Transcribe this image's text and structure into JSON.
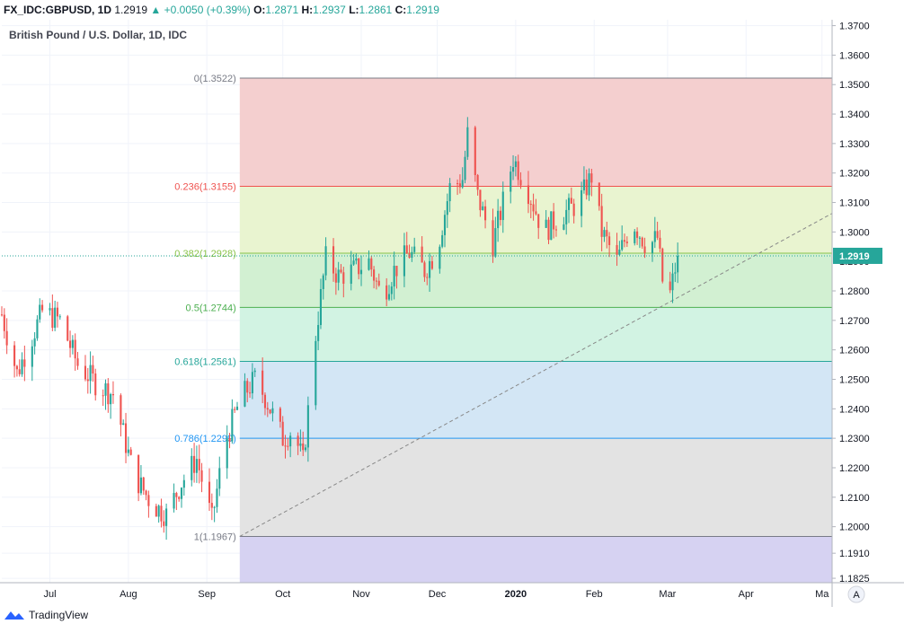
{
  "header": {
    "symbol": "FX_IDC:GBPUSD, 1D",
    "last": "1.2919",
    "change": "+0.0050 (+0.39%)",
    "open_label": "O:",
    "open": "1.2871",
    "high_label": "H:",
    "high": "1.2937",
    "low_label": "L:",
    "low": "1.2861",
    "close_label": "C:",
    "close": "1.2919"
  },
  "footer": {
    "brand": "TradingView"
  },
  "colors": {
    "up": "#26a69a",
    "down": "#ef5350",
    "grid": "#f0f3fa",
    "axis_text": "#131722"
  },
  "chart_data": {
    "type": "candlestick",
    "title": "British Pound / U.S. Dollar, 1D, IDC",
    "y_axis": {
      "ylim": [
        1.181,
        1.372
      ],
      "ticks": [
        1.37,
        1.36,
        1.35,
        1.34,
        1.33,
        1.32,
        1.31,
        1.3,
        1.28,
        1.27,
        1.26,
        1.25,
        1.24,
        1.23,
        1.22,
        1.21,
        1.2,
        1.191,
        1.1825
      ],
      "tick_labels": [
        "1.3700",
        "1.3600",
        "1.3500",
        "1.3400",
        "1.3300",
        "1.3200",
        "1.3100",
        "1.3000",
        "1.2800",
        "1.2700",
        "1.2600",
        "1.2500",
        "1.2400",
        "1.2300",
        "1.2200",
        "1.2100",
        "1.2000",
        "1.1910",
        "1.1825"
      ],
      "last_price": 1.2919,
      "last_price_label": "1.2919",
      "last_price_label_partial": "1.29",
      "partial_tick_under_label": "1.2900"
    },
    "x_axis": {
      "start": "2019-06-12",
      "end": "2020-05-05",
      "tick_labels": [
        {
          "label": "Jul",
          "date": "2019-07-01"
        },
        {
          "label": "Aug",
          "date": "2019-08-01"
        },
        {
          "label": "Sep",
          "date": "2019-09-01"
        },
        {
          "label": "Oct",
          "date": "2019-10-01"
        },
        {
          "label": "Nov",
          "date": "2019-11-01"
        },
        {
          "label": "Dec",
          "date": "2019-12-01"
        },
        {
          "label": "2020",
          "date": "2020-01-01"
        },
        {
          "label": "Feb",
          "date": "2020-02-01"
        },
        {
          "label": "Mar",
          "date": "2020-03-01"
        },
        {
          "label": "Apr",
          "date": "2020-04-01"
        },
        {
          "label": "Ma",
          "date": "2020-05-01"
        }
      ],
      "scale_button": "A"
    },
    "fib_retracement": {
      "start_date": "2019-09-14",
      "end_date": "2020-05-05",
      "levels": [
        {
          "ratio": 0,
          "price": 1.3522,
          "label": "0(1.3522)",
          "line": "#787b86",
          "fill": "#f4cfcf"
        },
        {
          "ratio": 0.236,
          "price": 1.3155,
          "label": "0.236(1.3155)",
          "line": "#ef5350",
          "fill": "#e9f4d0"
        },
        {
          "ratio": 0.382,
          "price": 1.2928,
          "label": "0.382(1.2928)",
          "line": "#8bc34a",
          "fill": "#d2f0d2"
        },
        {
          "ratio": 0.5,
          "price": 1.2744,
          "label": "0.5(1.2744)",
          "line": "#4caf50",
          "fill": "#d2f3e3"
        },
        {
          "ratio": 0.618,
          "price": 1.2561,
          "label": "0.618(1.2561)",
          "line": "#26a69a",
          "fill": "#d3e6f5"
        },
        {
          "ratio": 0.786,
          "price": 1.23,
          "label": "0.786(1.2299)",
          "line": "#2196f3",
          "fill": "#e3e3e3"
        },
        {
          "ratio": 1,
          "price": 1.1967,
          "label": "1(1.1967)",
          "line": "#787b86",
          "fill": "#d6d2f2"
        }
      ],
      "bottom_price": 1.181
    },
    "trend_line": {
      "start": {
        "date": "2019-09-14",
        "price": 1.1967
      },
      "end": {
        "date": "2020-05-05",
        "price": 1.3063
      }
    },
    "waypoints": [
      {
        "date": "2019-06-12",
        "price": 1.272
      },
      {
        "date": "2019-06-18",
        "price": 1.252
      },
      {
        "date": "2019-06-28",
        "price": 1.273
      },
      {
        "date": "2019-07-05",
        "price": 1.27
      },
      {
        "date": "2019-07-12",
        "price": 1.255
      },
      {
        "date": "2019-07-20",
        "price": 1.248
      },
      {
        "date": "2019-07-26",
        "price": 1.245
      },
      {
        "date": "2019-08-03",
        "price": 1.218
      },
      {
        "date": "2019-08-10",
        "price": 1.208
      },
      {
        "date": "2019-08-16",
        "price": 1.204
      },
      {
        "date": "2019-08-22",
        "price": 1.215
      },
      {
        "date": "2019-08-28",
        "price": 1.223
      },
      {
        "date": "2019-09-03",
        "price": 1.202
      },
      {
        "date": "2019-09-08",
        "price": 1.228
      },
      {
        "date": "2019-09-14",
        "price": 1.243
      },
      {
        "date": "2019-09-20",
        "price": 1.25
      },
      {
        "date": "2019-09-24",
        "price": 1.244
      },
      {
        "date": "2019-10-01",
        "price": 1.23
      },
      {
        "date": "2019-10-05",
        "price": 1.233
      },
      {
        "date": "2019-10-09",
        "price": 1.222
      },
      {
        "date": "2019-10-14",
        "price": 1.265
      },
      {
        "date": "2019-10-18",
        "price": 1.291
      },
      {
        "date": "2019-10-23",
        "price": 1.285
      },
      {
        "date": "2019-10-29",
        "price": 1.287
      },
      {
        "date": "2019-11-04",
        "price": 1.29
      },
      {
        "date": "2019-11-09",
        "price": 1.278
      },
      {
        "date": "2019-11-14",
        "price": 1.287
      },
      {
        "date": "2019-11-20",
        "price": 1.293
      },
      {
        "date": "2019-11-26",
        "price": 1.287
      },
      {
        "date": "2019-12-01",
        "price": 1.294
      },
      {
        "date": "2019-12-06",
        "price": 1.315
      },
      {
        "date": "2019-12-11",
        "price": 1.318
      },
      {
        "date": "2019-12-13",
        "price": 1.333
      },
      {
        "date": "2019-12-17",
        "price": 1.312
      },
      {
        "date": "2019-12-23",
        "price": 1.296
      },
      {
        "date": "2019-12-27",
        "price": 1.31
      },
      {
        "date": "2019-12-31",
        "price": 1.325
      },
      {
        "date": "2020-01-06",
        "price": 1.314
      },
      {
        "date": "2020-01-12",
        "price": 1.3
      },
      {
        "date": "2020-01-18",
        "price": 1.305
      },
      {
        "date": "2020-01-26",
        "price": 1.31
      },
      {
        "date": "2020-01-31",
        "price": 1.319
      },
      {
        "date": "2020-02-04",
        "price": 1.3
      },
      {
        "date": "2020-02-10",
        "price": 1.29
      },
      {
        "date": "2020-02-16",
        "price": 1.304
      },
      {
        "date": "2020-02-22",
        "price": 1.295
      },
      {
        "date": "2020-02-26",
        "price": 1.298
      },
      {
        "date": "2020-02-29",
        "price": 1.276
      },
      {
        "date": "2020-03-02",
        "price": 1.279
      },
      {
        "date": "2020-03-05",
        "price": 1.2919
      }
    ]
  }
}
